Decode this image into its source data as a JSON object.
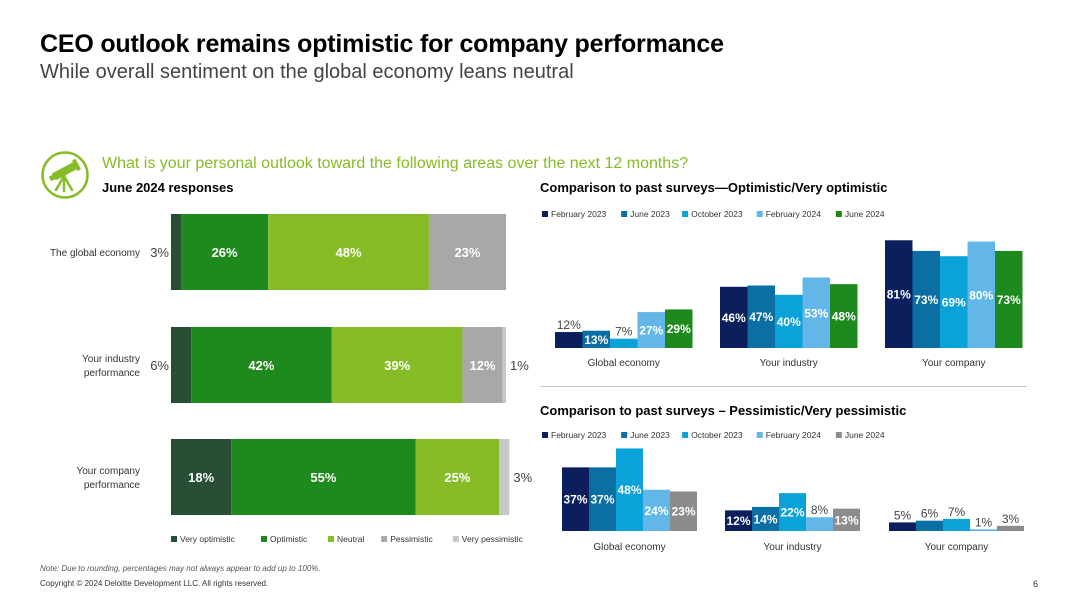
{
  "title": "CEO outlook remains optimistic for company performance",
  "subtitle": "While overall sentiment on the global economy leans neutral",
  "question": "What is your personal outlook toward the following areas over the next 12 months?",
  "note": "Note: Due to rounding, percentages may not always appear to add up to 100%.",
  "copyright": "Copyright © 2024 Deloitte Development LLC. All rights reserved.",
  "page_number": "6",
  "icon": "telescope-icon",
  "colors": {
    "accent_green": "#86bc25",
    "very_optimistic": "#2a4d35",
    "optimistic": "#1e8a1e",
    "neutral": "#86bc25",
    "pessimistic": "#a8a8a8",
    "very_pessimistic": "#c8c8c8",
    "feb2023": "#0b1f5c",
    "jun2023": "#0b6fa3",
    "oct2023": "#0aa2d9",
    "feb2024": "#62b7e8",
    "jun2024_opt": "#1e8a1e",
    "jun2024_pess": "#8c8c8c"
  },
  "chart_data": [
    {
      "type": "bar",
      "orientation": "horizontal",
      "stacked": true,
      "title": "June 2024 responses",
      "categories": [
        "The global economy",
        "Your industry performance",
        "Your company performance"
      ],
      "series": [
        {
          "name": "Very optimistic",
          "values": [
            3,
            6,
            18
          ]
        },
        {
          "name": "Optimistic",
          "values": [
            26,
            42,
            55
          ]
        },
        {
          "name": "Neutral",
          "values": [
            48,
            39,
            25
          ]
        },
        {
          "name": "Pessimistic",
          "values": [
            23,
            12,
            0
          ]
        },
        {
          "name": "Very pessimistic",
          "values": [
            0,
            1,
            3
          ]
        }
      ],
      "labels": [
        [
          "3%",
          "26%",
          "48%",
          "23%",
          ""
        ],
        [
          "6%",
          "42%",
          "39%",
          "12%",
          "1%"
        ],
        [
          "18%",
          "55%",
          "25%",
          "",
          "3%"
        ]
      ],
      "legend": "bottom"
    },
    {
      "type": "bar",
      "title": "Comparison to past surveys—Optimistic/Very optimistic",
      "categories": [
        "Global economy",
        "Your industry",
        "Your company"
      ],
      "series": [
        {
          "name": "February 2023",
          "values": [
            12,
            46,
            81
          ]
        },
        {
          "name": "June 2023",
          "values": [
            13,
            47,
            73
          ]
        },
        {
          "name": "October 2023",
          "values": [
            7,
            40,
            69
          ]
        },
        {
          "name": "February 2024",
          "values": [
            27,
            53,
            80
          ]
        },
        {
          "name": "June 2024",
          "values": [
            29,
            48,
            73
          ]
        }
      ],
      "legend": "top-left"
    },
    {
      "type": "bar",
      "title": "Comparison to past surveys – Pessimistic/Very pessimistic",
      "categories": [
        "Global economy",
        "Your industry",
        "Your company"
      ],
      "series": [
        {
          "name": "February 2023",
          "values": [
            37,
            12,
            5
          ]
        },
        {
          "name": "June 2023",
          "values": [
            37,
            14,
            6
          ]
        },
        {
          "name": "October 2023",
          "values": [
            48,
            22,
            7
          ]
        },
        {
          "name": "February 2024",
          "values": [
            24,
            8,
            1
          ]
        },
        {
          "name": "June 2024",
          "values": [
            23,
            13,
            3
          ]
        }
      ],
      "legend": "top-left"
    }
  ]
}
